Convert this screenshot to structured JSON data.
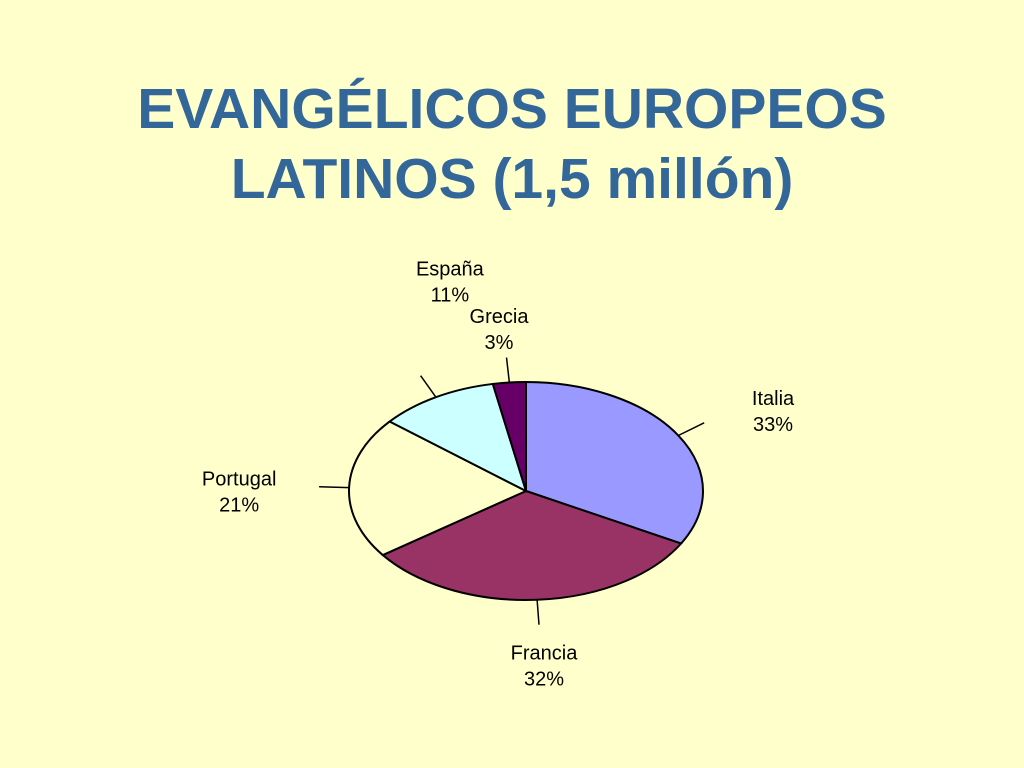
{
  "chart_data": {
    "type": "pie",
    "title": "EVANGÉLICOS EUROPEOS LATINOS (1,5 millón)",
    "categories": [
      "Italia",
      "Francia",
      "Portugal",
      "España",
      "Grecia"
    ],
    "values": [
      33,
      32,
      21,
      11,
      3
    ],
    "value_labels": [
      "33%",
      "32%",
      "21%",
      "11%",
      "3%"
    ],
    "colors": [
      "#9999ff",
      "#993366",
      "#ffffcc",
      "#ccffff",
      "#660066"
    ]
  }
}
